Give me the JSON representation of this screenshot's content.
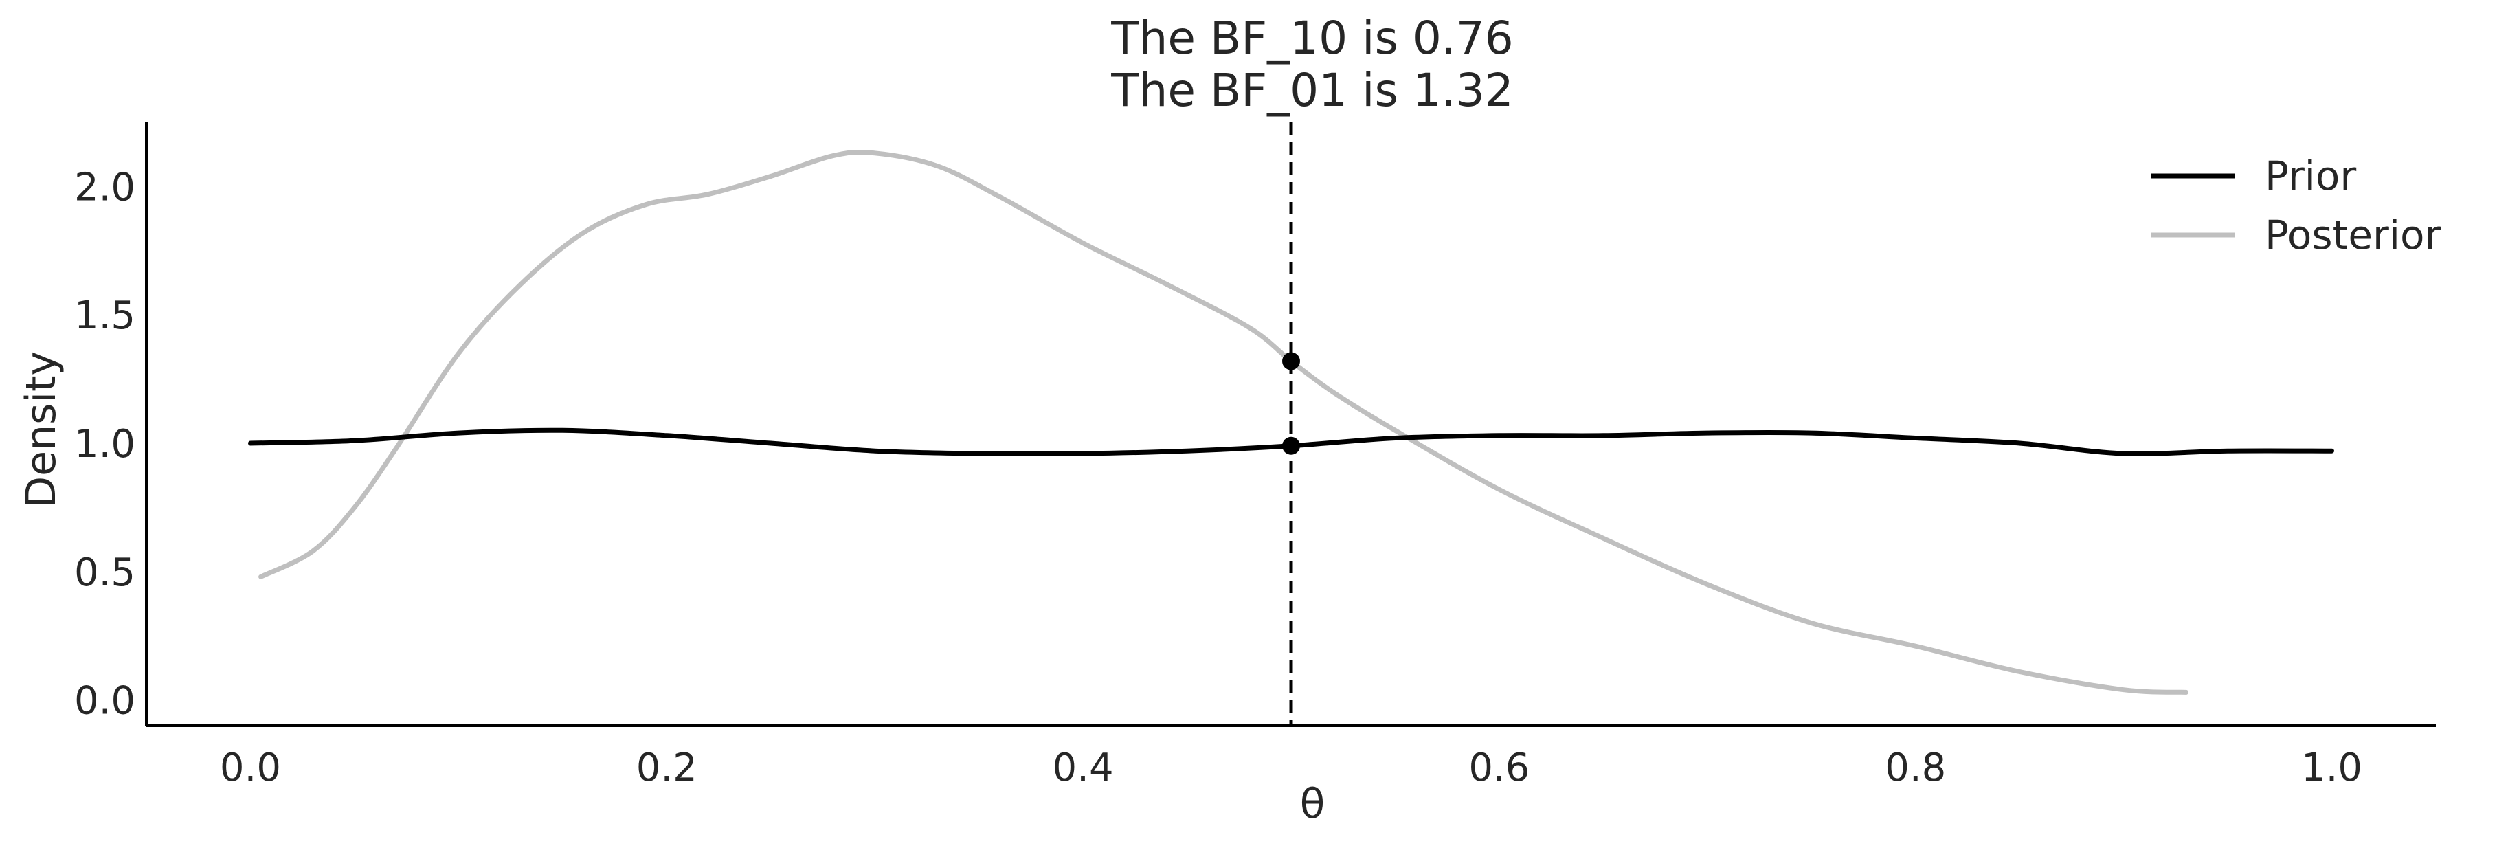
{
  "chart_data": {
    "type": "line",
    "title": [
      "The BF_10 is 0.76",
      "The BF_01 is 1.32"
    ],
    "xlabel": "θ",
    "ylabel": "Density",
    "xlim": [
      -0.05,
      1.05
    ],
    "ylim": [
      -0.1,
      2.25
    ],
    "xticks": [
      0.0,
      0.2,
      0.4,
      0.6,
      0.8,
      1.0
    ],
    "xtick_labels": [
      "0.0",
      "0.2",
      "0.4",
      "0.6",
      "0.8",
      "1.0"
    ],
    "yticks": [
      0.0,
      0.5,
      1.0,
      1.5,
      2.0
    ],
    "ytick_labels": [
      "0.0",
      "0.5",
      "1.0",
      "1.5",
      "2.0"
    ],
    "grid": false,
    "legend": "top-right",
    "series": [
      {
        "name": "Prior",
        "color": "#000000",
        "x": [
          0.0,
          0.05,
          0.1,
          0.15,
          0.2,
          0.25,
          0.3,
          0.35,
          0.4,
          0.45,
          0.5,
          0.55,
          0.6,
          0.65,
          0.7,
          0.75,
          0.8,
          0.85,
          0.9,
          0.95,
          1.0
        ],
        "y": [
          1.0,
          1.01,
          1.04,
          1.05,
          1.03,
          1.0,
          0.97,
          0.96,
          0.96,
          0.97,
          0.99,
          1.02,
          1.03,
          1.03,
          1.04,
          1.04,
          1.02,
          1.0,
          0.96,
          0.97,
          0.97
        ]
      },
      {
        "name": "Posterior",
        "color": "#bfbfbf",
        "x": [
          0.005,
          0.03,
          0.05,
          0.07,
          0.1,
          0.13,
          0.16,
          0.19,
          0.22,
          0.25,
          0.28,
          0.3,
          0.33,
          0.36,
          0.4,
          0.44,
          0.48,
          0.5,
          0.52,
          0.55,
          0.6,
          0.65,
          0.7,
          0.75,
          0.8,
          0.85,
          0.9,
          0.93
        ],
        "y": [
          0.48,
          0.58,
          0.75,
          0.98,
          1.35,
          1.62,
          1.82,
          1.93,
          1.97,
          2.04,
          2.12,
          2.13,
          2.08,
          1.96,
          1.78,
          1.62,
          1.45,
          1.32,
          1.2,
          1.05,
          0.82,
          0.63,
          0.45,
          0.3,
          0.21,
          0.11,
          0.04,
          0.03
        ]
      }
    ],
    "reference_line": {
      "x": 0.5,
      "style": "dashed",
      "color": "#000000"
    },
    "markers": [
      {
        "x": 0.5,
        "y": 0.99,
        "color": "#000000"
      },
      {
        "x": 0.5,
        "y": 1.32,
        "color": "#000000"
      }
    ]
  }
}
